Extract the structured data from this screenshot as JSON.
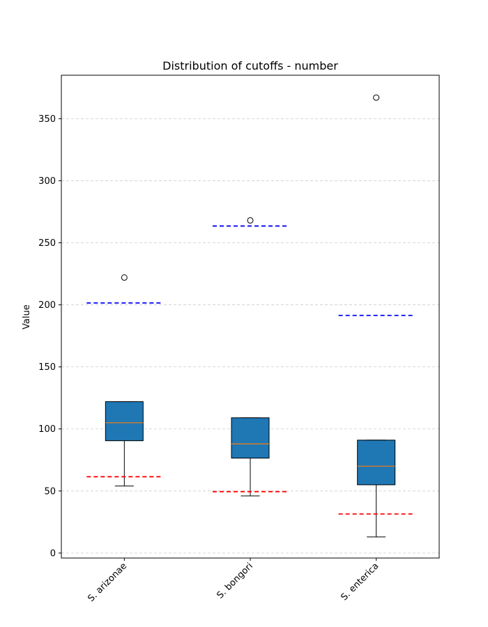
{
  "chart_data": {
    "type": "boxplot",
    "title": "Distribution of cutoffs - number",
    "xlabel": "",
    "ylabel": "Value",
    "ylim": [
      -4,
      385
    ],
    "yticks": [
      0,
      50,
      100,
      150,
      200,
      250,
      300,
      350
    ],
    "grid": "y-dashed",
    "categories": [
      "S. arizonae",
      "S. bongori",
      "S. enterica"
    ],
    "boxes": [
      {
        "category": "S. arizonae",
        "whisker_low": 54,
        "q1": 90.5,
        "median": 105,
        "q3": 122,
        "whisker_high": 122,
        "outliers": [
          222
        ],
        "lower_cutoff": 61.5,
        "upper_cutoff": 201.5
      },
      {
        "category": "S. bongori",
        "whisker_low": 46,
        "q1": 76.5,
        "median": 88,
        "q3": 109,
        "whisker_high": 109,
        "outliers": [
          268
        ],
        "lower_cutoff": 49.5,
        "upper_cutoff": 263.5
      },
      {
        "category": "S. enterica",
        "whisker_low": 13,
        "q1": 55,
        "median": 70,
        "q3": 91,
        "whisker_high": 91,
        "outliers": [
          367
        ],
        "lower_cutoff": 31.5,
        "upper_cutoff": 191.5
      }
    ],
    "colors": {
      "box_fill": "#1f77b4",
      "median": "#ff7f0e",
      "lower_cutoff": "#ff0000",
      "upper_cutoff": "#0000ff",
      "grid": "#cccccc"
    }
  }
}
